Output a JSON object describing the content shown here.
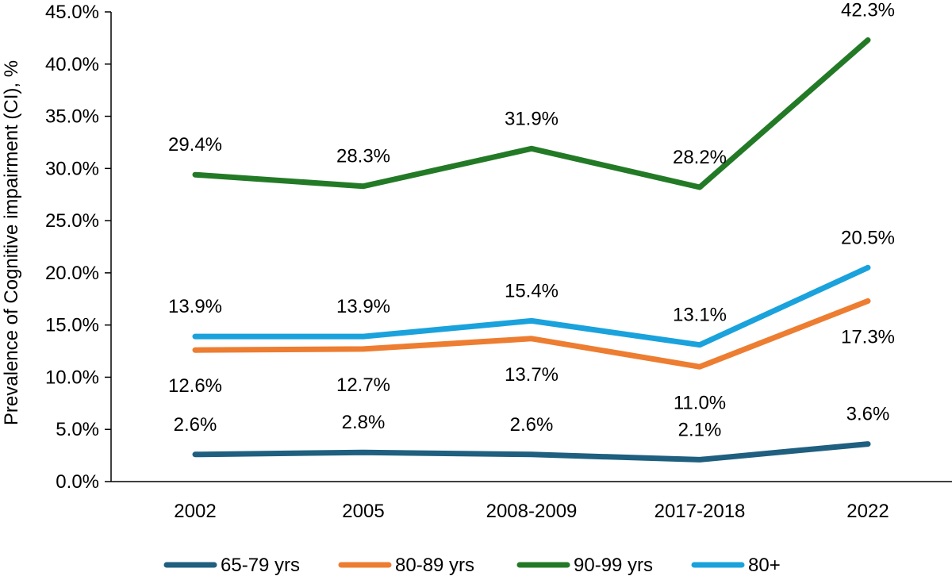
{
  "chart_data": {
    "type": "line",
    "title": "",
    "xlabel": "",
    "ylabel": "Prevalence of Cognitive impairment (CI), %",
    "categories": [
      "2002",
      "2005",
      "2008-2009",
      "2017-2018",
      "2022"
    ],
    "ylim": [
      0,
      45
    ],
    "yticks": [
      0,
      5,
      10,
      15,
      20,
      25,
      30,
      35,
      40,
      45
    ],
    "ytick_labels": [
      "0.0%",
      "5.0%",
      "10.0%",
      "15.0%",
      "20.0%",
      "25.0%",
      "30.0%",
      "35.0%",
      "40.0%",
      "45.0%"
    ],
    "grid": false,
    "legend_position": "bottom",
    "series": [
      {
        "key": "s65-79",
        "name": "65-79 yrs",
        "color": "#1f5f7f",
        "values": [
          2.6,
          2.8,
          2.6,
          2.1,
          3.6
        ],
        "labels": [
          "2.6%",
          "2.8%",
          "2.6%",
          "2.1%",
          "3.6%"
        ],
        "label_side": [
          "above",
          "above",
          "above",
          "above",
          "above"
        ]
      },
      {
        "key": "s80-89",
        "name": "80-89 yrs",
        "color": "#ed7d31",
        "values": [
          12.6,
          12.7,
          13.7,
          11.0,
          17.3
        ],
        "labels": [
          "12.6%",
          "12.7%",
          "13.7%",
          "11.0%",
          "17.3%"
        ],
        "label_side": [
          "below",
          "below",
          "below",
          "below",
          "below"
        ]
      },
      {
        "key": "s90-99",
        "name": "90-99 yrs",
        "color": "#237a26",
        "values": [
          29.4,
          28.3,
          31.9,
          28.2,
          42.3
        ],
        "labels": [
          "29.4%",
          "28.3%",
          "31.9%",
          "28.2%",
          "42.3%"
        ],
        "label_side": [
          "above",
          "above",
          "above",
          "above",
          "above"
        ]
      },
      {
        "key": "s80plus",
        "name": "80+",
        "color": "#1aa2dc",
        "values": [
          13.9,
          13.9,
          15.4,
          13.1,
          20.5
        ],
        "labels": [
          "13.9%",
          "13.9%",
          "15.4%",
          "13.1%",
          "20.5%"
        ],
        "label_side": [
          "above",
          "above",
          "above",
          "above",
          "above"
        ]
      }
    ]
  }
}
